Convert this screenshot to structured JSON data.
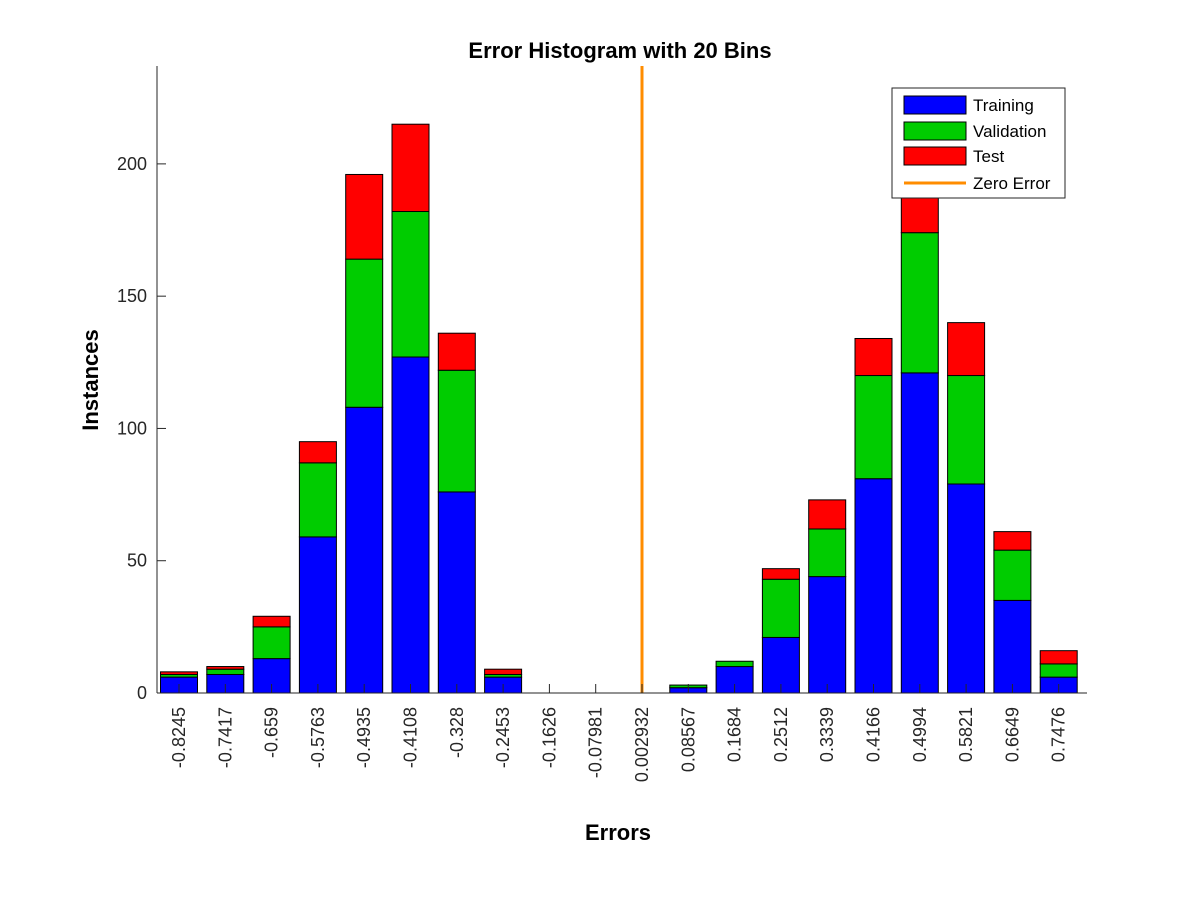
{
  "chart_data": {
    "type": "bar",
    "stacked": true,
    "title": "Error Histogram with 20 Bins",
    "xlabel": "Errors",
    "ylabel": "Instances",
    "ylim": [
      0,
      237
    ],
    "yticks": [
      0,
      50,
      100,
      150,
      200
    ],
    "categories": [
      "-0.8245",
      "-0.7417",
      "-0.659",
      "-0.5763",
      "-0.4935",
      "-0.4108",
      "-0.328",
      "-0.2453",
      "-0.1626",
      "-0.07981",
      "0.002932",
      "0.08567",
      "0.1684",
      "0.2512",
      "0.3339",
      "0.4166",
      "0.4994",
      "0.5821",
      "0.6649",
      "0.7476"
    ],
    "series": [
      {
        "name": "Training",
        "color": "#0000ff",
        "values": [
          6,
          7,
          13,
          59,
          108,
          127,
          76,
          6,
          0,
          0,
          0,
          2,
          10,
          21,
          44,
          81,
          121,
          79,
          35,
          6
        ]
      },
      {
        "name": "Validation",
        "color": "#00cc00",
        "values": [
          1,
          2,
          12,
          28,
          56,
          55,
          46,
          1,
          0,
          0,
          0,
          1,
          2,
          22,
          18,
          39,
          53,
          41,
          19,
          5
        ]
      },
      {
        "name": "Test",
        "color": "#ff0000",
        "values": [
          1,
          1,
          4,
          8,
          32,
          33,
          14,
          2,
          0,
          0,
          0,
          0,
          0,
          4,
          11,
          14,
          24,
          20,
          7,
          5
        ]
      }
    ],
    "zero_error": {
      "name": "Zero Error",
      "x": "0.002932",
      "color": "#ff8c00"
    },
    "legend": "top-right",
    "grid": false
  }
}
